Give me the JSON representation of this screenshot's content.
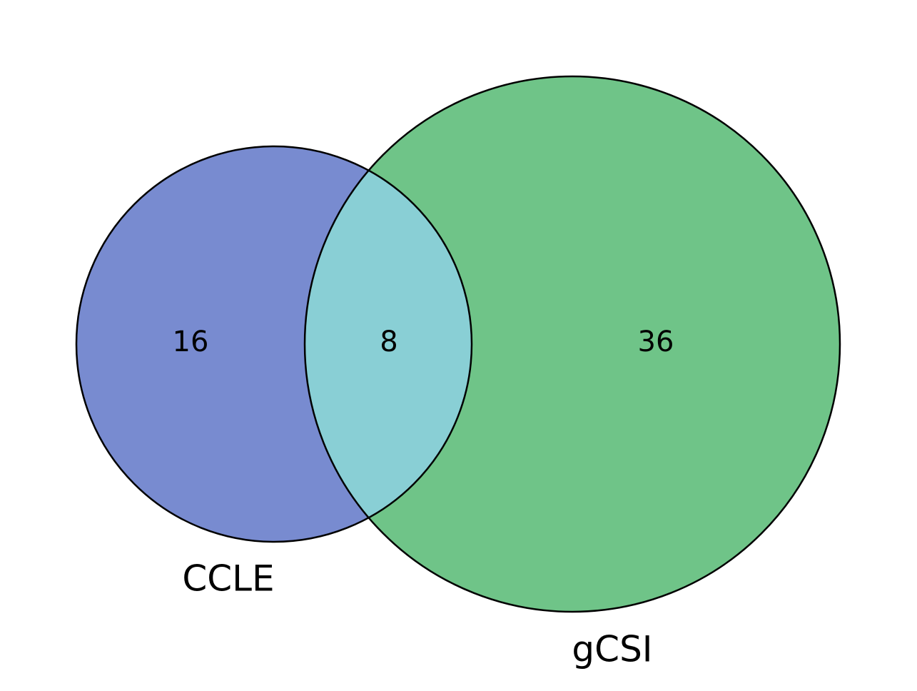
{
  "venn": {
    "sets": [
      {
        "id": "left",
        "label": "CCLE",
        "color": "#788bd0"
      },
      {
        "id": "right",
        "label": "gCSI",
        "color": "#6fc488"
      }
    ],
    "regions": {
      "left_only": "16",
      "intersection": "8",
      "right_only": "36"
    },
    "intersection_color": "#89cfd5",
    "outline_color": "#000000"
  }
}
